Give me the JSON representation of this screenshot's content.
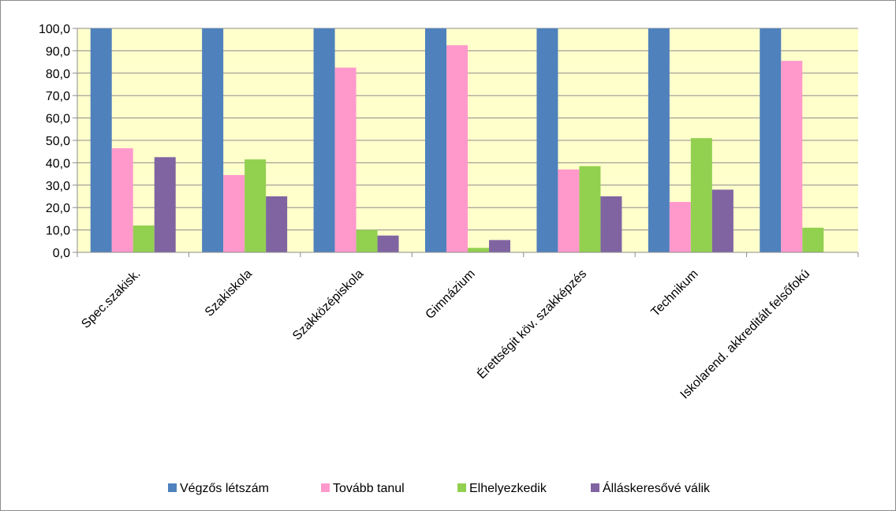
{
  "chart_data": {
    "type": "bar",
    "title": "",
    "xlabel": "",
    "ylabel": "",
    "ylim": [
      0,
      100
    ],
    "ytick_step": 10,
    "ytick_labels": [
      "0,0",
      "10,0",
      "20,0",
      "30,0",
      "40,0",
      "50,0",
      "60,0",
      "70,0",
      "80,0",
      "90,0",
      "100,0"
    ],
    "grid": true,
    "plot_background": "#ffffcc",
    "legend_position": "bottom",
    "categories": [
      "Spec.szakisk.",
      "Szakiskola",
      "Szakközépiskola",
      "Gimnázium",
      "Érettségit köv. szakképzés",
      "Technikum",
      "Iskolarend. akkreditált felsőfokú"
    ],
    "series": [
      {
        "name": "Végzős létszám",
        "color": "#4f81bd",
        "values": [
          100,
          100,
          100,
          100,
          100,
          100,
          100
        ]
      },
      {
        "name": "Tovább tanul",
        "color": "#ff99cc",
        "values": [
          46.5,
          34.5,
          82.5,
          92.5,
          37,
          22.5,
          85.5
        ]
      },
      {
        "name": "Elhelyezkedik",
        "color": "#92d050",
        "values": [
          12,
          41.5,
          10,
          2,
          38.5,
          51,
          11
        ]
      },
      {
        "name": "Álláskeresővé válik",
        "color": "#8064a2",
        "values": [
          42.5,
          25,
          7.5,
          5.5,
          25,
          28,
          0
        ]
      }
    ]
  }
}
